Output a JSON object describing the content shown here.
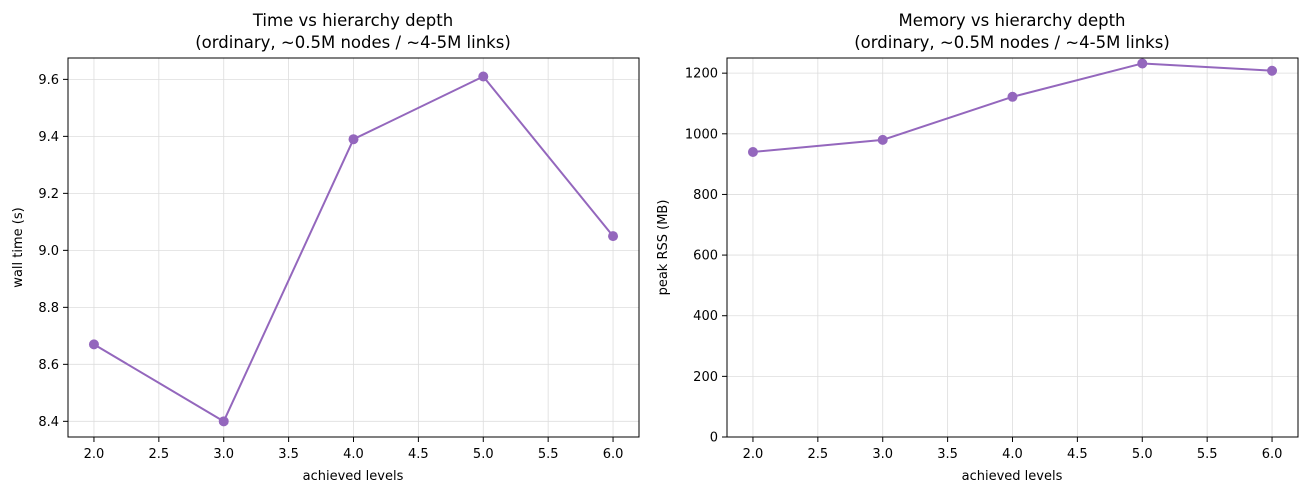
{
  "chart_data": [
    {
      "type": "line",
      "title": "Time vs hierarchy depth",
      "subtitle": "(ordinary, ~0.5M nodes / ~4-5M links)",
      "xlabel": "achieved levels",
      "ylabel": "wall time (s)",
      "x": [
        2.0,
        3.0,
        4.0,
        5.0,
        6.0
      ],
      "y": [
        8.67,
        8.4,
        9.39,
        9.61,
        9.05
      ],
      "xlim": [
        1.8,
        6.2
      ],
      "ylim": [
        8.345,
        9.675
      ],
      "xticks": [
        2.0,
        2.5,
        3.0,
        3.5,
        4.0,
        4.5,
        5.0,
        5.5,
        6.0
      ],
      "xtick_labels": [
        "2.0",
        "2.5",
        "3.0",
        "3.5",
        "4.0",
        "4.5",
        "5.0",
        "5.5",
        "6.0"
      ],
      "yticks": [
        8.4,
        8.6,
        8.8,
        9.0,
        9.2,
        9.4,
        9.6
      ],
      "ytick_labels": [
        "8.4",
        "8.6",
        "8.8",
        "9.0",
        "9.2",
        "9.4",
        "9.6"
      ],
      "grid": true,
      "legend": "none",
      "color": "#9467bd"
    },
    {
      "type": "line",
      "title": "Memory vs hierarchy depth",
      "subtitle": "(ordinary, ~0.5M nodes / ~4-5M links)",
      "xlabel": "achieved levels",
      "ylabel": "peak RSS (MB)",
      "x": [
        2.0,
        3.0,
        4.0,
        5.0,
        6.0
      ],
      "y": [
        940,
        980,
        1122,
        1232,
        1208
      ],
      "xlim": [
        1.8,
        6.2
      ],
      "ylim": [
        0,
        1250
      ],
      "xticks": [
        2.0,
        2.5,
        3.0,
        3.5,
        4.0,
        4.5,
        5.0,
        5.5,
        6.0
      ],
      "xtick_labels": [
        "2.0",
        "2.5",
        "3.0",
        "3.5",
        "4.0",
        "4.5",
        "5.0",
        "5.5",
        "6.0"
      ],
      "yticks": [
        0,
        200,
        400,
        600,
        800,
        1000,
        1200
      ],
      "ytick_labels": [
        "0",
        "200",
        "400",
        "600",
        "800",
        "1000",
        "1200"
      ],
      "grid": true,
      "legend": "none",
      "color": "#9467bd"
    }
  ]
}
